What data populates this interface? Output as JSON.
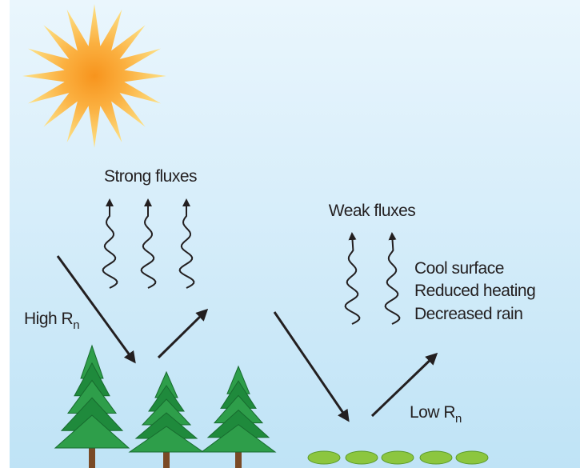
{
  "labels": {
    "strong": "Strong fluxes",
    "weak": "Weak fluxes",
    "effects": [
      "Cool surface",
      "Reduced heating",
      "Decreased rain"
    ],
    "high": {
      "text": "High R",
      "subscript": "n"
    },
    "low": {
      "text": "Low R",
      "subscript": "n"
    }
  }
}
